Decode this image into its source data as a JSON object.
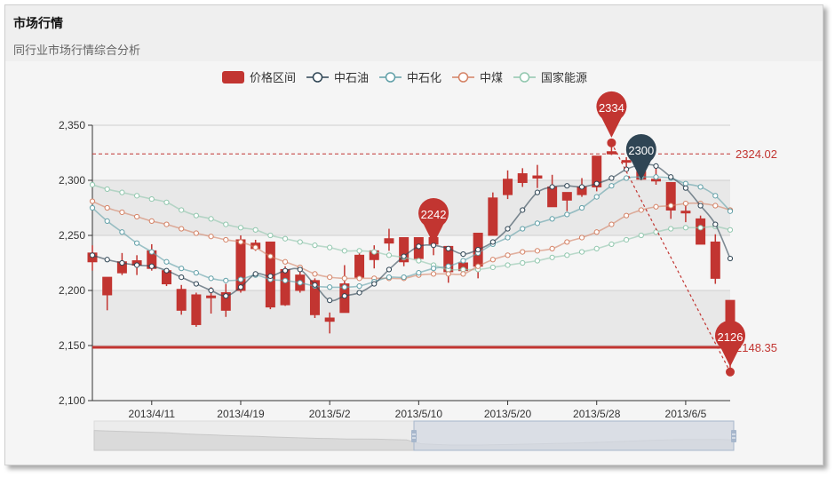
{
  "header": {
    "title": "市场行情",
    "subtitle": "同行业市场行情综合分析"
  },
  "colors": {
    "candle": "#c23531",
    "中石油": "#2f4554",
    "中石化": "#61a0a8",
    "中煤": "#d48265",
    "国家能源": "#91c7ae",
    "zoom_selected": "#d3d9e3",
    "zoom_handle": "#a7b7cc"
  },
  "chart_data": {
    "type": "candlestick",
    "ylim": [
      2100,
      2350
    ],
    "y_ticks": [
      "2,100",
      "2,150",
      "2,200",
      "2,250",
      "2,300",
      "2,350"
    ],
    "y_tick_values": [
      2100,
      2150,
      2200,
      2250,
      2300,
      2350
    ],
    "split_area": true,
    "grid": true,
    "legend": {
      "placement": "top-center",
      "items": [
        "价格区间",
        "中石油",
        "中石化",
        "中煤",
        "国家能源"
      ]
    },
    "x_labels": [
      {
        "index": 4,
        "label": "2013/4/11"
      },
      {
        "index": 10,
        "label": "2013/4/19"
      },
      {
        "index": 16,
        "label": "2013/5/2"
      },
      {
        "index": 22,
        "label": "2013/5/10"
      },
      {
        "index": 28,
        "label": "2013/5/20"
      },
      {
        "index": 34,
        "label": "2013/5/28"
      },
      {
        "index": 40,
        "label": "2013/6/5"
      }
    ],
    "candles_ohlc": [
      [
        2234,
        2226,
        2218,
        2241
      ],
      [
        2212,
        2196,
        2182,
        2212
      ],
      [
        2226,
        2216,
        2214,
        2234
      ],
      [
        2227,
        2223,
        2214,
        2232
      ],
      [
        2236,
        2220,
        2218,
        2242
      ],
      [
        2218,
        2206,
        2204,
        2219
      ],
      [
        2201,
        2182,
        2178,
        2205
      ],
      [
        2196,
        2169,
        2167,
        2198
      ],
      [
        2195,
        2194,
        2179,
        2203
      ],
      [
        2198,
        2182,
        2176,
        2206
      ],
      [
        2246,
        2200,
        2198,
        2250
      ],
      [
        2243,
        2238,
        2236,
        2246
      ],
      [
        2244,
        2185,
        2183,
        2244
      ],
      [
        2219,
        2187,
        2186,
        2222
      ],
      [
        2214,
        2200,
        2198,
        2218
      ],
      [
        2209,
        2178,
        2175,
        2211
      ],
      [
        2175,
        2172,
        2161,
        2180
      ],
      [
        2206,
        2180,
        2180,
        2223
      ],
      [
        2232,
        2212,
        2210,
        2234
      ],
      [
        2236,
        2228,
        2220,
        2241
      ],
      [
        2247,
        2243,
        2236,
        2256
      ],
      [
        2248,
        2226,
        2222,
        2248
      ],
      [
        2248,
        2229,
        2229,
        2248
      ],
      [
        2248,
        2242,
        2232,
        2248
      ],
      [
        2240,
        2217,
        2207,
        2240
      ],
      [
        2225,
        2218,
        2214,
        2228
      ],
      [
        2252,
        2222,
        2211,
        2252
      ],
      [
        2284,
        2250,
        2250,
        2289
      ],
      [
        2301,
        2287,
        2283,
        2309
      ],
      [
        2306,
        2298,
        2294,
        2311
      ],
      [
        2304,
        2302,
        2293,
        2314
      ],
      [
        2294,
        2276,
        2276,
        2305
      ],
      [
        2289,
        2282,
        2272,
        2289
      ],
      [
        2294,
        2287,
        2285,
        2302
      ],
      [
        2322,
        2294,
        2290,
        2322
      ],
      [
        2326,
        2324,
        2323,
        2334
      ],
      [
        2318,
        2317,
        2312,
        2321
      ],
      [
        2308,
        2301,
        2300,
        2310
      ],
      [
        2301,
        2300,
        2296,
        2312
      ],
      [
        2298,
        2273,
        2265,
        2298
      ],
      [
        2272,
        2271,
        2262,
        2281
      ],
      [
        2265,
        2242,
        2242,
        2268
      ],
      [
        2244,
        2211,
        2206,
        2251
      ],
      [
        2191,
        2150,
        2126,
        2191
      ]
    ],
    "series": [
      {
        "name": "中石油",
        "values": [
          2232,
          2228,
          2225,
          2223,
          2222,
          2218,
          2212,
          2206,
          2200,
          2195,
          2203,
          2215,
          2213,
          2218,
          2219,
          2205,
          2191,
          2195,
          2198,
          2206,
          2219,
          2231,
          2240,
          2241,
          2238,
          2233,
          2237,
          2244,
          2256,
          2273,
          2289,
          2294,
          2295,
          2294,
          2297,
          2302,
          2310,
          2314,
          2313,
          2303,
          2293,
          2277,
          2260,
          2229
        ]
      },
      {
        "name": "中石化",
        "values": [
          2275,
          2263,
          2253,
          2243,
          2235,
          2226,
          2220,
          2216,
          2211,
          2209,
          2210,
          2214,
          2210,
          2209,
          2207,
          2204,
          2203,
          2203,
          2204,
          2208,
          2212,
          2212,
          2216,
          2220,
          2222,
          2227,
          2234,
          2242,
          2248,
          2256,
          2261,
          2265,
          2269,
          2275,
          2285,
          2295,
          2302,
          2303,
          2303,
          2302,
          2297,
          2294,
          2286,
          2272
        ]
      },
      {
        "name": "中煤",
        "values": [
          2281,
          2275,
          2271,
          2267,
          2263,
          2260,
          2256,
          2252,
          2249,
          2246,
          2244,
          2239,
          2231,
          2226,
          2221,
          2215,
          2212,
          2211,
          2211,
          2211,
          2211,
          2211,
          2214,
          2215,
          2215,
          2215,
          2222,
          2228,
          2232,
          2235,
          2236,
          2238,
          2244,
          2248,
          2253,
          2260,
          2268,
          2273,
          2276,
          2277,
          2279,
          2279,
          2277,
          2273
        ]
      },
      {
        "name": "国家能源",
        "values": [
          2296,
          2292,
          2289,
          2286,
          2283,
          2280,
          2273,
          2268,
          2265,
          2260,
          2257,
          2255,
          2250,
          2247,
          2244,
          2241,
          2239,
          2236,
          2236,
          2235,
          2232,
          2230,
          2227,
          2223,
          2219,
          2219,
          2219,
          2221,
          2223,
          2225,
          2227,
          2230,
          2232,
          2235,
          2238,
          2242,
          2246,
          2250,
          2253,
          2256,
          2257,
          2257,
          2258,
          2255
        ]
      }
    ],
    "mark_points": [
      {
        "index": 35,
        "value": 2334,
        "label": "2334",
        "color": "#c23531"
      },
      {
        "index": 37,
        "value": 2300,
        "label": "2300",
        "color": "#2f4554"
      },
      {
        "index": 23,
        "value": 2242,
        "label": "2242",
        "color": "#c23531"
      },
      {
        "index": 43,
        "value": 2126,
        "label": "2126",
        "color": "#c23531"
      }
    ],
    "mark_lines": [
      {
        "type": "average",
        "value": 2324.02,
        "label": "2324.02",
        "style": "dashed"
      },
      {
        "type": "horizontal",
        "value": 2148.35,
        "label": "2148.35",
        "style": "solid"
      },
      {
        "type": "segment",
        "from": {
          "index": 35,
          "value": 2334
        },
        "to": {
          "index": 43,
          "value": 2126
        },
        "style": "dashed"
      }
    ],
    "data_zoom": {
      "start_percent": 50,
      "end_percent": 100
    }
  }
}
